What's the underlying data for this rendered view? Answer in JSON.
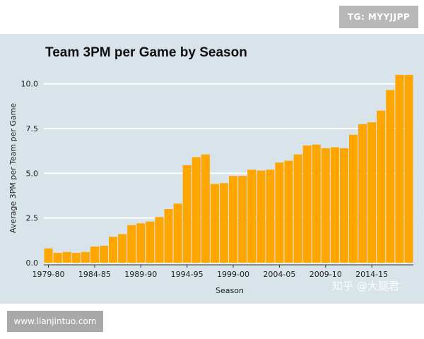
{
  "badges": {
    "top_right": "TG: MYYJJPP",
    "bottom_left": "www.lianjintuo.com"
  },
  "watermark": "知乎 @大腿君",
  "colors": {
    "bar": "#FFA500",
    "panel": "#D8E3EA",
    "gridline": "#FFFFFF"
  },
  "chart_data": {
    "type": "bar",
    "title": "Team 3PM per Game by Season",
    "xlabel": "Season",
    "ylabel": "Average 3PM per Team per Game",
    "ylim": [
      0,
      10.5
    ],
    "yticks": [
      "0.0",
      "2.5",
      "5.0",
      "7.5",
      "10.0"
    ],
    "xtick_labels": [
      "1979-80",
      "1984-85",
      "1989-90",
      "1994-95",
      "1999-00",
      "2004-05",
      "2009-10",
      "2014-15"
    ],
    "grid": true,
    "legend": "none",
    "categories": [
      "1979-80",
      "1980-81",
      "1981-82",
      "1982-83",
      "1983-84",
      "1984-85",
      "1985-86",
      "1986-87",
      "1987-88",
      "1988-89",
      "1989-90",
      "1990-91",
      "1991-92",
      "1992-93",
      "1993-94",
      "1994-95",
      "1995-96",
      "1996-97",
      "1997-98",
      "1998-99",
      "1999-00",
      "2000-01",
      "2001-02",
      "2002-03",
      "2003-04",
      "2004-05",
      "2005-06",
      "2006-07",
      "2007-08",
      "2008-09",
      "2009-10",
      "2010-11",
      "2011-12",
      "2012-13",
      "2013-14",
      "2014-15",
      "2015-16",
      "2016-17",
      "2017-18",
      "2018-19"
    ],
    "values": [
      0.8,
      0.55,
      0.6,
      0.55,
      0.6,
      0.9,
      0.95,
      1.45,
      1.6,
      2.1,
      2.2,
      2.3,
      2.55,
      3.0,
      3.3,
      5.45,
      5.9,
      6.05,
      4.4,
      4.45,
      4.85,
      4.85,
      5.2,
      5.15,
      5.2,
      5.6,
      5.7,
      6.05,
      6.55,
      6.6,
      6.4,
      6.45,
      6.4,
      7.15,
      7.75,
      7.85,
      8.5,
      9.65,
      10.5,
      10.5
    ]
  }
}
